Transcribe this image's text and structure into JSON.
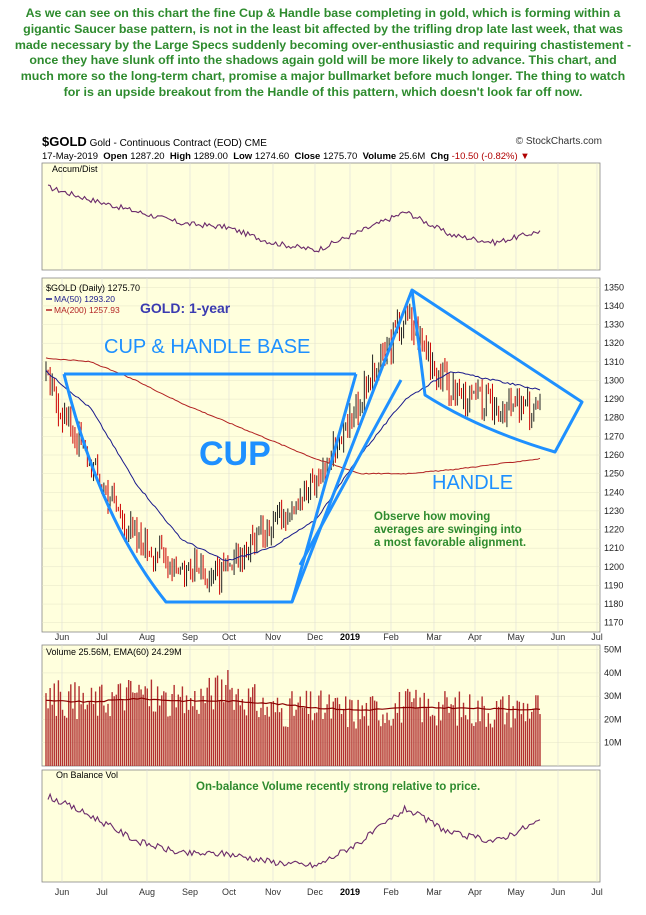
{
  "commentary": "As we can see on this chart the fine Cup & Handle base completing in gold, which is forming within a gigantic Saucer base pattern, is not in the least bit affected by the trifling drop late last week, that was made necessary by the Large Specs suddenly becoming over-enthusiastic and requiring chastistement - once they have slunk off into the shadows again gold will be more likely to advance. This chart, and much more so the long-term chart, promise a major bullmarket before much longer. The thing to watch for is an upside breakout from the Handle of this pattern, which doesn't look far off now.",
  "header": {
    "symbol": "$GOLD",
    "name": "Gold - Continuous Contract (EOD)",
    "exchange": "CME",
    "source": "© StockCharts.com",
    "date": "17-May-2019",
    "open_label": "Open",
    "open": "1287.20",
    "high_label": "High",
    "high": "1289.00",
    "low_label": "Low",
    "low": "1274.60",
    "close_label": "Close",
    "close": "1275.70",
    "volume_label": "Volume",
    "volume": "25.6M",
    "chg_label": "Chg",
    "chg": "-10.50 (-0.82%)",
    "chg_marker": "▼"
  },
  "panels": {
    "accum": {
      "label": "Accum/Dist"
    },
    "price": {
      "legend_symbol": "$GOLD (Daily) 1275.70",
      "legend_ma50": "MA(50) 1293.20",
      "legend_ma200": "MA(200) 1257.93",
      "title": "GOLD: 1-year",
      "cup_handle_label": "CUP & HANDLE BASE",
      "cup_label": "CUP",
      "handle_label": "HANDLE",
      "note": [
        "Observe how moving",
        "averages are swinging into",
        "a most favorable alignment."
      ]
    },
    "volume": {
      "legend": "Volume 25.56M, EMA(60) 24.29M"
    },
    "obv": {
      "label": "On Balance Vol",
      "note": "On-balance Volume recently strong relative to price."
    }
  },
  "x_axis": {
    "ticks": [
      "Jun",
      "Jul",
      "Aug",
      "Sep",
      "Oct",
      "Nov",
      "Dec",
      "2019",
      "Feb",
      "Mar",
      "Apr",
      "May",
      "Jun",
      "Jul"
    ]
  },
  "colors": {
    "panel_bg": "#ffffdd",
    "price_up": "#222222",
    "price_down": "#cc0000",
    "ma50": "#1a1a8c",
    "ma200": "#b22222",
    "annotation": "#1e90ff",
    "accent_text": "#2e8b2e",
    "volume_bar": "#b23030",
    "indicator": "#6b2a6b"
  },
  "chart_data": [
    {
      "type": "line",
      "panel": "Accum/Dist",
      "x": [
        "Jun",
        "Jul",
        "Aug",
        "Sep",
        "Oct",
        "Nov",
        "Dec",
        "2019",
        "Feb",
        "Mar",
        "Apr",
        "May"
      ],
      "series": [
        {
          "name": "Accum/Dist",
          "values": [
            0.92,
            0.75,
            0.6,
            0.45,
            0.4,
            0.2,
            0.1,
            0.35,
            0.6,
            0.3,
            0.2,
            0.35
          ]
        }
      ]
    },
    {
      "type": "line",
      "panel": "price",
      "ylim": [
        1165,
        1355
      ],
      "y_ticks": [
        1170,
        1180,
        1190,
        1200,
        1210,
        1220,
        1230,
        1240,
        1250,
        1260,
        1270,
        1280,
        1290,
        1300,
        1310,
        1320,
        1330,
        1340,
        1350
      ],
      "x": [
        "Jun",
        "Jul",
        "Aug",
        "Sep",
        "Oct",
        "Nov",
        "Dec",
        "2019",
        "Feb",
        "Mar",
        "Apr",
        "May"
      ],
      "series": [
        {
          "name": "$GOLD (Daily) 1275.70",
          "values": [
            1300,
            1255,
            1215,
            1200,
            1195,
            1225,
            1245,
            1290,
            1335,
            1295,
            1285,
            1285
          ]
        },
        {
          "name": "MA(50) 1293.20",
          "values": [
            1305,
            1285,
            1245,
            1215,
            1203,
            1210,
            1225,
            1260,
            1290,
            1305,
            1300,
            1295
          ]
        },
        {
          "name": "MA(200) 1257.93",
          "values": [
            1312,
            1310,
            1300,
            1288,
            1278,
            1268,
            1258,
            1250,
            1250,
            1252,
            1255,
            1258
          ]
        }
      ]
    },
    {
      "type": "bar",
      "panel": "volume",
      "ylim": [
        0,
        52
      ],
      "y_ticks": [
        "10M",
        "20M",
        "30M",
        "40M",
        "50M"
      ],
      "x": [
        "Jun",
        "Jul",
        "Aug",
        "Sep",
        "Oct",
        "Nov",
        "Dec",
        "2019",
        "Feb",
        "Mar",
        "Apr",
        "May"
      ],
      "series": [
        {
          "name": "Volume",
          "values": [
            30,
            27,
            32,
            26,
            34,
            24,
            25,
            23,
            26,
            25,
            24,
            25.56
          ]
        },
        {
          "name": "EMA(60)",
          "values": [
            28,
            27.5,
            29,
            28,
            28,
            27,
            25,
            24,
            25,
            25,
            24.5,
            24.29
          ]
        }
      ]
    },
    {
      "type": "line",
      "panel": "On Balance Vol",
      "x": [
        "Jun",
        "Jul",
        "Aug",
        "Sep",
        "Oct",
        "Nov",
        "Dec",
        "2019",
        "Feb",
        "Mar",
        "Apr",
        "May"
      ],
      "series": [
        {
          "name": "On Balance Vol",
          "values": [
            0.9,
            0.65,
            0.35,
            0.2,
            0.2,
            0.1,
            0.05,
            0.35,
            0.75,
            0.45,
            0.35,
            0.6
          ]
        }
      ]
    }
  ]
}
